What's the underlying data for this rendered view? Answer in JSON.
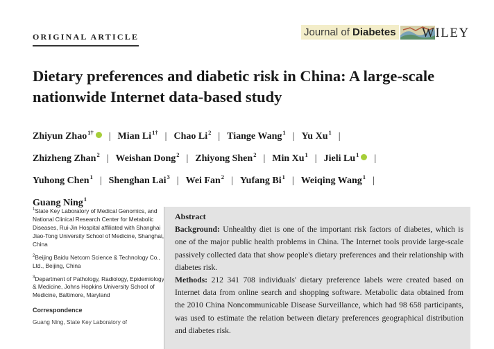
{
  "header": {
    "section": "ORIGINAL ARTICLE",
    "journal_prefix": "Journal of ",
    "journal_bold": "Diabetes",
    "publisher": "WILEY"
  },
  "title_line1": "Dietary preferences and diabetic risk in China: A large-scale",
  "title_line2": "nationwide Internet data-based study",
  "authors": [
    {
      "name": "Zhiyun Zhao",
      "sup": "1†",
      "orcid": true
    },
    {
      "name": "Mian Li",
      "sup": "1†",
      "orcid": false
    },
    {
      "name": "Chao Li",
      "sup": "2",
      "orcid": false
    },
    {
      "name": "Tiange Wang",
      "sup": "1",
      "orcid": false
    },
    {
      "name": "Yu Xu",
      "sup": "1",
      "orcid": false
    },
    {
      "name": "Zhizheng Zhan",
      "sup": "2",
      "orcid": false
    },
    {
      "name": "Weishan Dong",
      "sup": "2",
      "orcid": false
    },
    {
      "name": "Zhiyong Shen",
      "sup": "2",
      "orcid": false
    },
    {
      "name": "Min Xu",
      "sup": "1",
      "orcid": false
    },
    {
      "name": "Jieli Lu",
      "sup": "1",
      "orcid": true
    },
    {
      "name": "Yuhong Chen",
      "sup": "1",
      "orcid": false
    },
    {
      "name": "Shenghan Lai",
      "sup": "3",
      "orcid": false
    },
    {
      "name": "Wei Fan",
      "sup": "2",
      "orcid": false
    },
    {
      "name": "Yufang Bi",
      "sup": "1",
      "orcid": false
    },
    {
      "name": "Weiqing Wang",
      "sup": "1",
      "orcid": false
    },
    {
      "name": "Guang Ning",
      "sup": "1",
      "orcid": false
    }
  ],
  "author_separator": "|",
  "affiliations": [
    {
      "num": "1",
      "text": "State Key Laboratory of Medical Genomics, and National Clinical Research Center for Metabolic Diseases, Rui-Jin Hospital affiliated with Shanghai Jiao-Tong University School of Medicine, Shanghai, China"
    },
    {
      "num": "2",
      "text": "Beijing Baidu Netcom Science & Technology Co., Ltd., Beijing, China"
    },
    {
      "num": "3",
      "text": "Department of Pathology, Radiology, Epidemiology & Medicine, Johns Hopkins University School of Medicine, Baltimore, Maryland"
    }
  ],
  "correspondence": {
    "heading": "Correspondence",
    "text": "Guang Ning, State Key Laboratory of"
  },
  "abstract": {
    "heading": "Abstract",
    "background_label": "Background:",
    "background_text": " Unhealthy diet is one of the important risk factors of diabetes, which is one of the major public health problems in China. The Internet tools provide large-scale passively collected data that show people's dietary preferences and their relationship with diabetes risk.",
    "methods_label": "Methods:",
    "methods_text": " 212 341 708 individuals' dietary preference labels were created based on Internet data from online search and shopping software. Metabolic data obtained from the 2010 China Noncommunicable Disease Surveillance, which had 98 658 participants, was used to estimate the relation between dietary preferences geographical distribution and diabetes risk."
  },
  "colors": {
    "abstract_bg": "#e3e3e3",
    "orcid": "#a6ce39",
    "journal_bg": "#f3edc9"
  }
}
